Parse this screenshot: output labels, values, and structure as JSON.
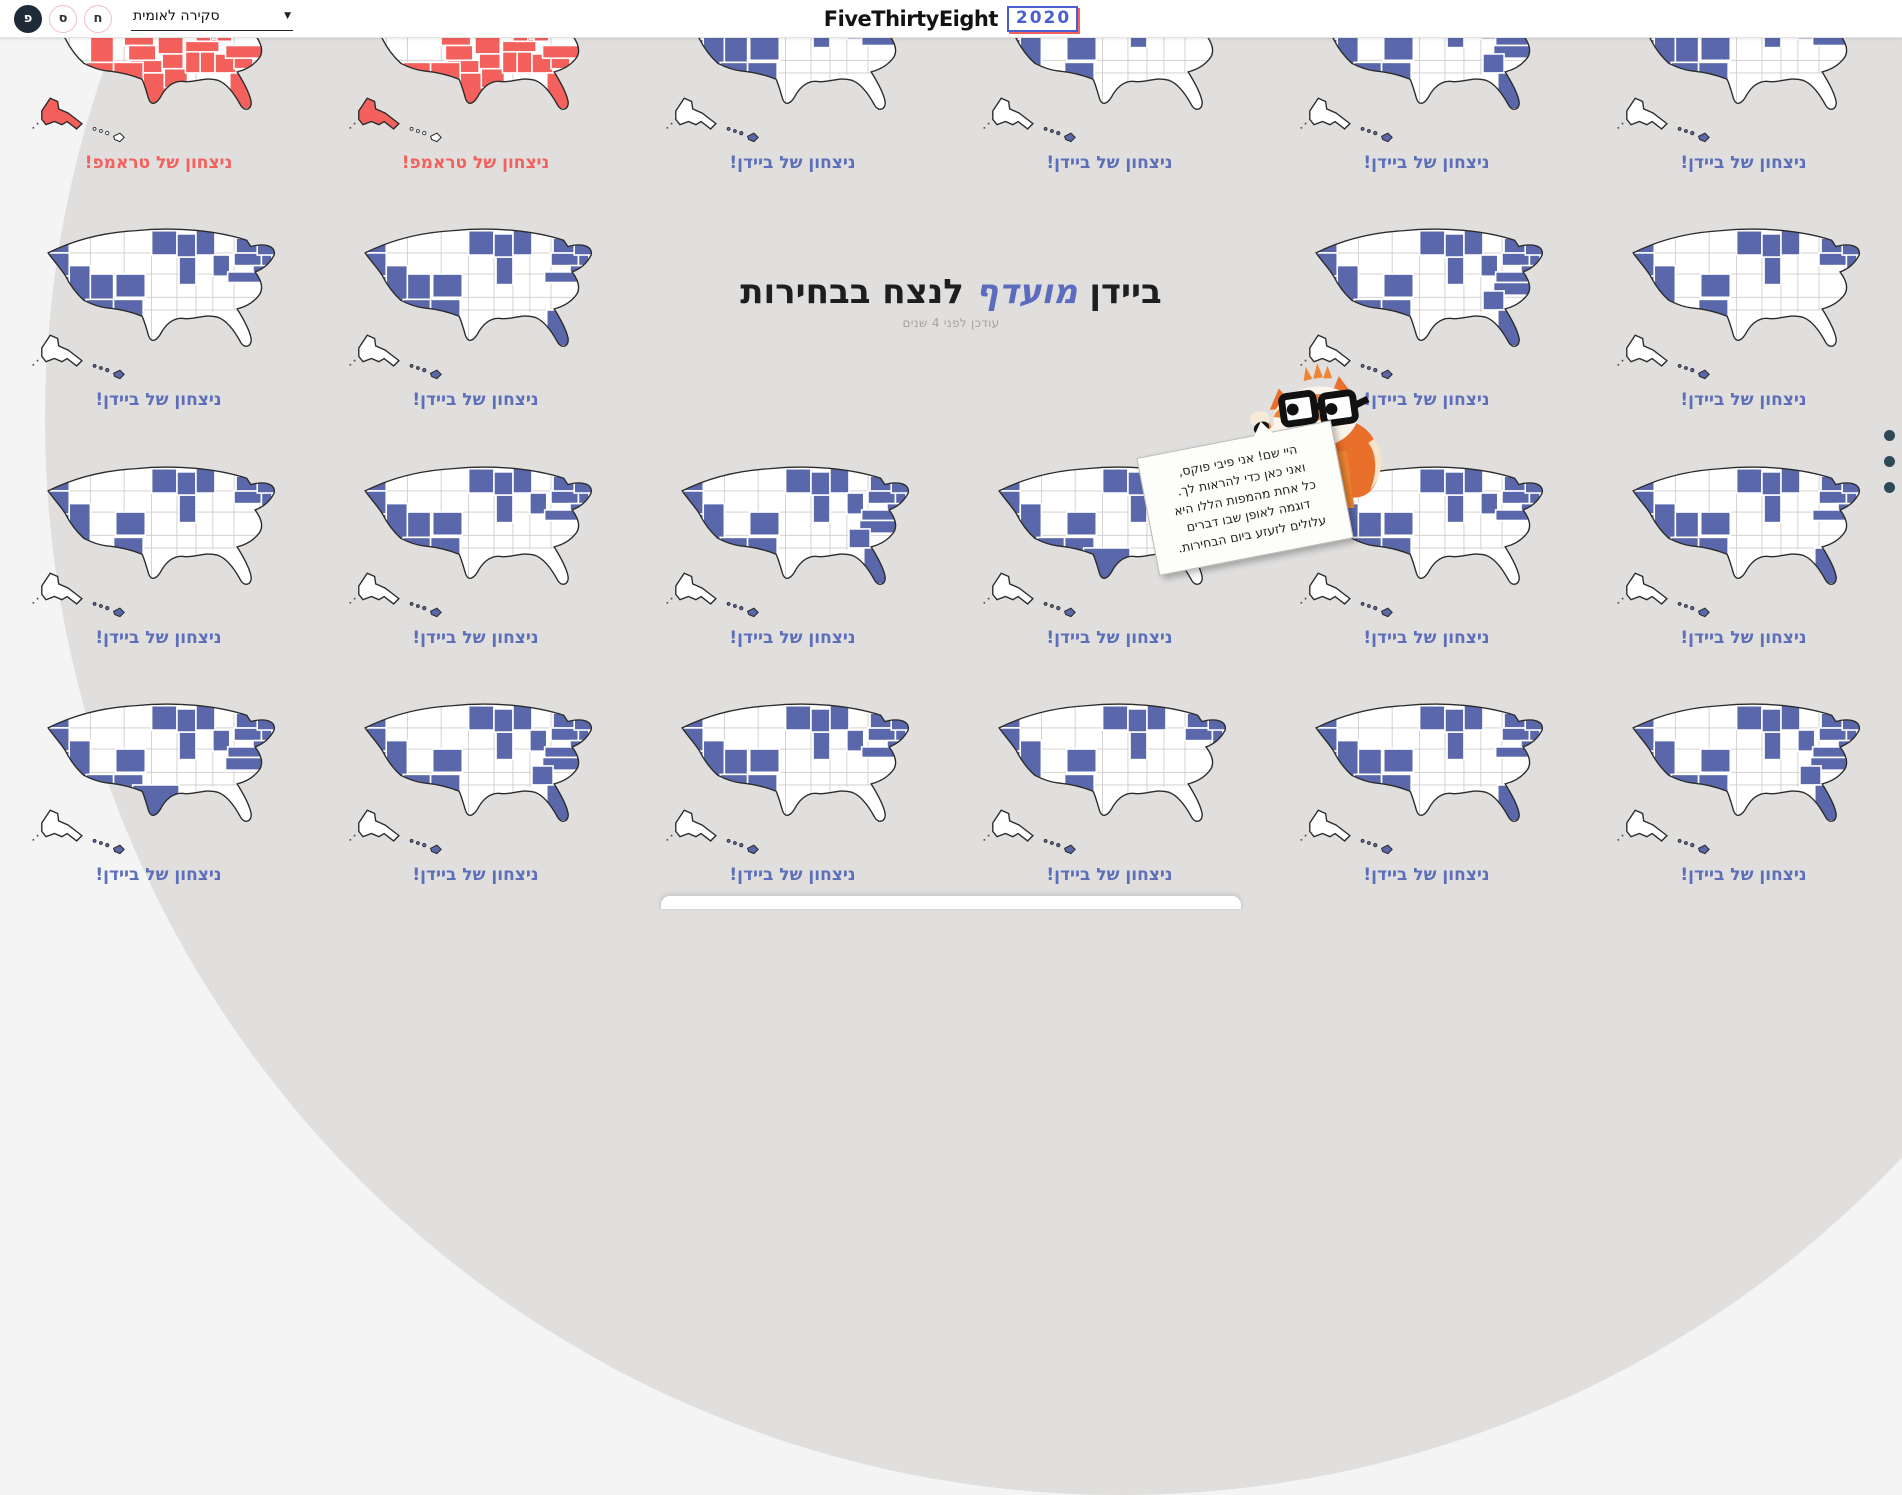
{
  "header": {
    "logo": "FiveThirtyEight",
    "year_badge": "2020"
  },
  "toolbar": {
    "buttons": [
      {
        "label": "פ",
        "style": "primary"
      },
      {
        "label": "ס",
        "style": "ghost"
      },
      {
        "label": "ח",
        "style": "ghost"
      }
    ],
    "dropdown": {
      "value": "סקירה לאומית"
    }
  },
  "hero": {
    "title_pre": "ביידן",
    "title_highlight": "מועדף",
    "title_post": "לנצח בבחירות",
    "updated": "עודכן לפני 4 שנים"
  },
  "captions": {
    "biden": "ניצחון של ביידן!",
    "trump": "ניצחון של טראמפ!"
  },
  "colors": {
    "dem_fill": "#5a68ab",
    "rep_fill": "#f4615d",
    "dem_text": "#5e6fba",
    "rep_text": "#f4605c",
    "dot": "#2e4a57",
    "circle_bg": "#e0dfde",
    "page_bg": "#f4f4f4",
    "badge_blue": "#4a5fd0",
    "badge_red": "#f4605c",
    "highlight_blue": "#5b6cbe"
  },
  "fox": {
    "bubble_lines": [
      "היי שם! אני פיבי פוקס,",
      "ואני כאן כדי להראות לך.",
      "כל אחת מהמפות הללו היא",
      "דוגמה לאופן שבו דברים",
      "עלולים לזעזע ביום הבחירות."
    ]
  },
  "pagination": {
    "count": 3
  },
  "maps": [
    {
      "row": 1,
      "col": 1,
      "result": "trump",
      "states": [
        "ID",
        "MT",
        "ND",
        "SD",
        "NE",
        "KS",
        "OK",
        "TX",
        "UT",
        "AZ",
        "NM",
        "IA",
        "MO",
        "AR",
        "LA",
        "MS",
        "AL",
        "TN",
        "KY",
        "IN",
        "OH",
        "MI",
        "WI",
        "MN",
        "GA",
        "FL",
        "SC",
        "NC",
        "WV",
        "PA",
        "AK"
      ]
    },
    {
      "row": 1,
      "col": 2,
      "result": "trump",
      "states": [
        "ID",
        "MT",
        "WY",
        "ND",
        "SD",
        "NE",
        "KS",
        "OK",
        "TX",
        "AZ",
        "NM",
        "IA",
        "MO",
        "AR",
        "LA",
        "MS",
        "AL",
        "TN",
        "KY",
        "IN",
        "OH",
        "GA",
        "FL",
        "SC",
        "NC",
        "WV",
        "AK"
      ]
    },
    {
      "row": 1,
      "col": 3,
      "result": "biden",
      "states": [
        "WA",
        "OR",
        "CA",
        "NV",
        "UT",
        "AZ",
        "NM",
        "CO",
        "MN",
        "WI",
        "MI",
        "IL",
        "OH",
        "PA",
        "NY",
        "NJ",
        "MD",
        "NE1",
        "VA",
        "HI"
      ]
    },
    {
      "row": 1,
      "col": 4,
      "result": "biden",
      "states": [
        "WA",
        "OR",
        "CA",
        "NV",
        "CO",
        "NM",
        "MN",
        "WI",
        "MI",
        "IL",
        "PA",
        "NY",
        "NJ",
        "NE1",
        "HI"
      ]
    },
    {
      "row": 1,
      "col": 5,
      "result": "biden",
      "states": [
        "WA",
        "OR",
        "CA",
        "NV",
        "AZ",
        "NM",
        "CO",
        "MN",
        "WI",
        "MI",
        "IL",
        "OH",
        "PA",
        "NY",
        "NJ",
        "MD",
        "NE1",
        "VA",
        "NC",
        "GA",
        "FL",
        "HI"
      ]
    },
    {
      "row": 1,
      "col": 6,
      "result": "biden",
      "states": [
        "WA",
        "OR",
        "CA",
        "NV",
        "UT",
        "AZ",
        "NM",
        "CO",
        "MN",
        "WI",
        "MI",
        "IL",
        "OH",
        "PA",
        "NY",
        "NJ",
        "MD",
        "NE1",
        "VA",
        "HI"
      ]
    },
    {
      "row": 2,
      "col": 1,
      "result": "biden",
      "states": [
        "WA",
        "OR",
        "CA",
        "NV",
        "UT",
        "AZ",
        "NM",
        "CO",
        "MN",
        "WI",
        "MI",
        "IL",
        "OH",
        "PA",
        "NY",
        "NJ",
        "MD",
        "NE1",
        "VA",
        "HI"
      ]
    },
    {
      "row": 2,
      "col": 2,
      "result": "biden",
      "states": [
        "WA",
        "OR",
        "CA",
        "NV",
        "UT",
        "AZ",
        "NM",
        "CO",
        "MN",
        "WI",
        "MI",
        "IL",
        "PA",
        "NY",
        "NJ",
        "MD",
        "NE1",
        "VA",
        "FL",
        "HI"
      ]
    },
    {
      "row": 2,
      "col": 5,
      "result": "biden",
      "states": [
        "WA",
        "OR",
        "CA",
        "NV",
        "AZ",
        "NM",
        "CO",
        "MN",
        "WI",
        "MI",
        "IL",
        "OH",
        "PA",
        "NY",
        "NJ",
        "MD",
        "NE1",
        "VA",
        "NC",
        "GA",
        "FL",
        "HI"
      ]
    },
    {
      "row": 2,
      "col": 6,
      "result": "biden",
      "states": [
        "WA",
        "OR",
        "CA",
        "NV",
        "CO",
        "NM",
        "MN",
        "WI",
        "MI",
        "IL",
        "PA",
        "NY",
        "NJ",
        "NE1",
        "HI"
      ]
    },
    {
      "row": 3,
      "col": 1,
      "result": "biden",
      "states": [
        "WA",
        "OR",
        "CA",
        "NV",
        "CO",
        "NM",
        "MN",
        "WI",
        "MI",
        "IL",
        "PA",
        "NY",
        "NJ",
        "NE1",
        "HI"
      ]
    },
    {
      "row": 3,
      "col": 2,
      "result": "biden",
      "states": [
        "WA",
        "OR",
        "CA",
        "NV",
        "UT",
        "AZ",
        "NM",
        "CO",
        "MN",
        "WI",
        "MI",
        "IL",
        "OH",
        "PA",
        "NY",
        "NJ",
        "MD",
        "NE1",
        "VA",
        "HI"
      ]
    },
    {
      "row": 3,
      "col": 3,
      "result": "biden",
      "states": [
        "WA",
        "OR",
        "CA",
        "NV",
        "AZ",
        "NM",
        "CO",
        "MN",
        "WI",
        "MI",
        "IL",
        "OH",
        "PA",
        "NY",
        "NJ",
        "MD",
        "NE1",
        "VA",
        "NC",
        "GA",
        "FL",
        "HI"
      ]
    },
    {
      "row": 3,
      "col": 4,
      "result": "biden",
      "states": [
        "WA",
        "OR",
        "CA",
        "NV",
        "AZ",
        "NM",
        "TX",
        "CO",
        "MN",
        "WI",
        "MI",
        "IL",
        "OH",
        "PA",
        "NY",
        "NJ",
        "MD",
        "NE1",
        "VA",
        "NC",
        "HI"
      ]
    },
    {
      "row": 3,
      "col": 5,
      "result": "biden",
      "states": [
        "WA",
        "OR",
        "CA",
        "NV",
        "UT",
        "AZ",
        "NM",
        "CO",
        "MN",
        "WI",
        "MI",
        "IL",
        "OH",
        "PA",
        "NY",
        "NJ",
        "MD",
        "NE1",
        "VA",
        "HI"
      ]
    },
    {
      "row": 3,
      "col": 6,
      "result": "biden",
      "states": [
        "WA",
        "OR",
        "CA",
        "NV",
        "UT",
        "AZ",
        "NM",
        "CO",
        "MN",
        "WI",
        "MI",
        "IL",
        "PA",
        "NY",
        "NJ",
        "MD",
        "NE1",
        "VA",
        "FL",
        "HI"
      ]
    },
    {
      "row": 4,
      "col": 1,
      "result": "biden",
      "states": [
        "WA",
        "OR",
        "CA",
        "NV",
        "AZ",
        "NM",
        "TX",
        "CO",
        "MN",
        "WI",
        "MI",
        "IL",
        "OH",
        "PA",
        "NY",
        "NJ",
        "MD",
        "NE1",
        "VA",
        "NC",
        "HI"
      ]
    },
    {
      "row": 4,
      "col": 2,
      "result": "biden",
      "states": [
        "WA",
        "OR",
        "CA",
        "NV",
        "AZ",
        "NM",
        "CO",
        "MN",
        "WI",
        "MI",
        "IL",
        "OH",
        "PA",
        "NY",
        "NJ",
        "MD",
        "NE1",
        "VA",
        "NC",
        "GA",
        "FL",
        "HI"
      ]
    },
    {
      "row": 4,
      "col": 3,
      "result": "biden",
      "states": [
        "WA",
        "OR",
        "CA",
        "NV",
        "UT",
        "AZ",
        "NM",
        "CO",
        "MN",
        "WI",
        "MI",
        "IL",
        "OH",
        "PA",
        "NY",
        "NJ",
        "MD",
        "NE1",
        "VA",
        "HI"
      ]
    },
    {
      "row": 4,
      "col": 4,
      "result": "biden",
      "states": [
        "WA",
        "OR",
        "CA",
        "NV",
        "CO",
        "NM",
        "MN",
        "WI",
        "MI",
        "IL",
        "PA",
        "NY",
        "NJ",
        "NE1",
        "HI"
      ]
    },
    {
      "row": 4,
      "col": 5,
      "result": "biden",
      "states": [
        "WA",
        "OR",
        "CA",
        "NV",
        "UT",
        "AZ",
        "NM",
        "CO",
        "MN",
        "WI",
        "MI",
        "IL",
        "PA",
        "NY",
        "NJ",
        "MD",
        "NE1",
        "VA",
        "FL",
        "HI"
      ]
    },
    {
      "row": 4,
      "col": 6,
      "result": "biden",
      "states": [
        "WA",
        "OR",
        "CA",
        "NV",
        "AZ",
        "NM",
        "CO",
        "MN",
        "WI",
        "MI",
        "IL",
        "OH",
        "PA",
        "NY",
        "NJ",
        "MD",
        "NE1",
        "VA",
        "NC",
        "GA",
        "FL",
        "HI"
      ]
    }
  ]
}
